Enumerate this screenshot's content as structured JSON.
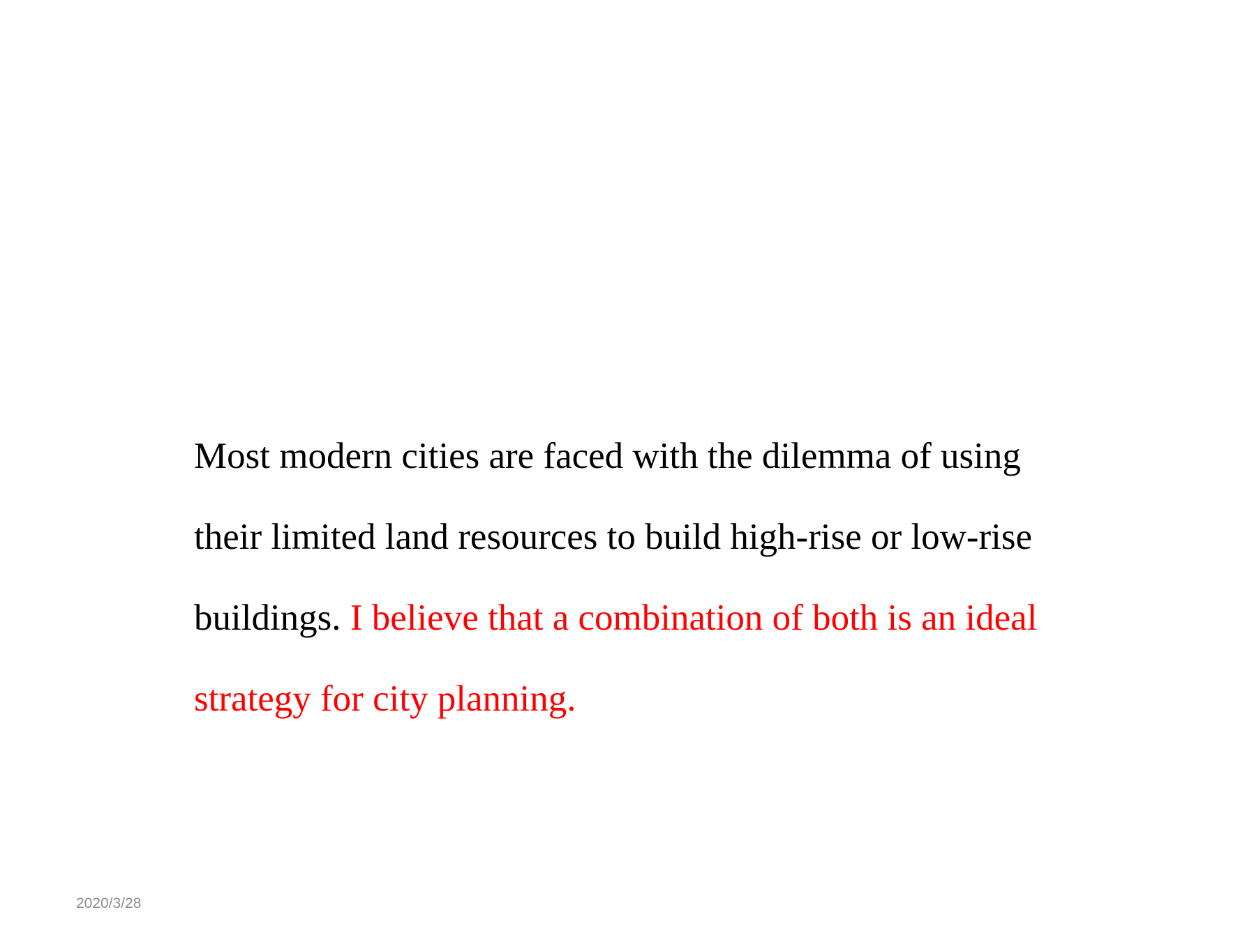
{
  "slide": {
    "paragraph": {
      "lines": [
        {
          "plain": "Most modern cities are faced with the dilemma of using",
          "emphasis": ""
        },
        {
          "plain": "their limited land resources to build high-rise or low-rise",
          "emphasis": ""
        },
        {
          "plain": "buildings. ",
          "emphasis": "I believe that a combination of both is an ideal"
        },
        {
          "plain": "",
          "emphasis": "strategy for city planning."
        }
      ]
    },
    "footer": {
      "date": "2020/3/28"
    }
  },
  "colors": {
    "text": "#000000",
    "emphasis": "#ff0000",
    "footer": "#8c8c8c",
    "background": "#ffffff"
  }
}
